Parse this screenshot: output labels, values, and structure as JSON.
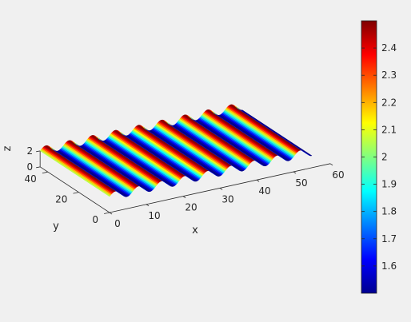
{
  "chart_data": {
    "type": "surface",
    "colormap": "jet",
    "x_axis": {
      "label": "x",
      "ticks": [
        0,
        10,
        20,
        30,
        40,
        50,
        60
      ],
      "range": [
        0,
        60
      ]
    },
    "y_axis": {
      "label": "y",
      "ticks": [
        0,
        20,
        40
      ],
      "range": [
        0,
        45
      ]
    },
    "z_axis": {
      "label": "z",
      "ticks": [
        0,
        2
      ],
      "range": [
        0,
        2
      ]
    },
    "surface": {
      "description": "z = 2 + 0.5*sin(x)",
      "z_offset": 2.0,
      "amplitude": 0.5,
      "angular_frequency_x": 1.0,
      "x_range": [
        0,
        55
      ],
      "y_range": [
        0,
        45
      ]
    },
    "colorbar": {
      "range": [
        1.5,
        2.5
      ],
      "ticks": [
        "1.6",
        "1.7",
        "1.8",
        "1.9",
        "2",
        "2.1",
        "2.2",
        "2.3",
        "2.4"
      ]
    }
  }
}
